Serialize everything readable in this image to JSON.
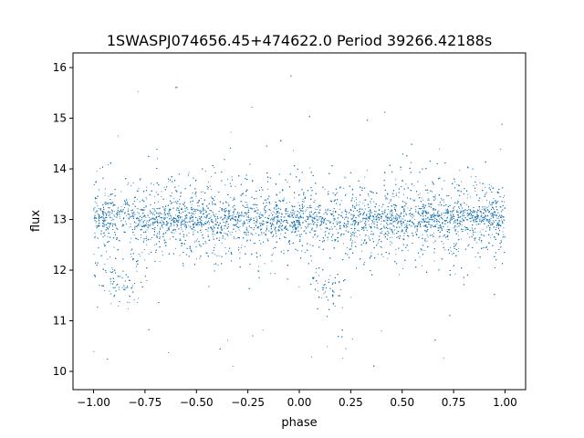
{
  "chart_data": {
    "type": "scatter",
    "title": "1SWASPJ074656.45+474622.0 Period 39266.42188s",
    "xlabel": "phase",
    "ylabel": "flux",
    "xlim": [
      -1.1,
      1.1
    ],
    "ylim": [
      9.64,
      16.29
    ],
    "xticks": [
      -1.0,
      -0.75,
      -0.5,
      -0.25,
      0.0,
      0.25,
      0.5,
      0.75,
      1.0
    ],
    "xtick_labels": [
      "−1.00",
      "−0.75",
      "−0.50",
      "−0.25",
      "0.00",
      "0.25",
      "0.50",
      "0.75",
      "1.00"
    ],
    "yticks": [
      10,
      11,
      12,
      13,
      14,
      15,
      16
    ],
    "ytick_labels": [
      "10",
      "11",
      "12",
      "13",
      "14",
      "15",
      "16"
    ],
    "grid": false,
    "point_color": "#1f77b4",
    "description_of_data": {
      "phase_range": [
        -1.0,
        1.0
      ],
      "baseline_flux": 13.0,
      "dense_band": [
        12.3,
        14.0
      ],
      "dip_phases": [
        -0.85,
        0.15
      ],
      "dip_min_flux": 11.6,
      "outlier_range": [
        10.0,
        16.0
      ]
    }
  }
}
